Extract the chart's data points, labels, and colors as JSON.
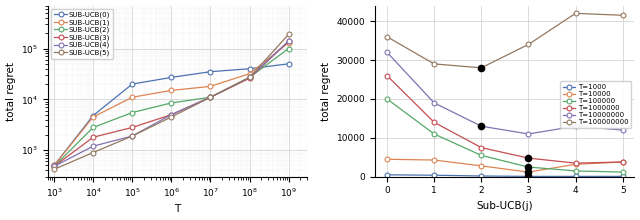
{
  "left": {
    "T_values": [
      1000,
      10000,
      100000,
      1000000,
      10000000,
      100000000,
      1000000000
    ],
    "series": [
      {
        "label": "SUB-UCB(0)",
        "color": "#4c72b0",
        "values": [
          500,
          4800,
          20000,
          27000,
          35000,
          40000,
          50000
        ]
      },
      {
        "label": "SUB-UCB(1)",
        "color": "#dd8452",
        "values": [
          500,
          4500,
          11000,
          15000,
          18000,
          32000,
          130000
        ]
      },
      {
        "label": "SUB-UCB(2)",
        "color": "#55a868",
        "values": [
          480,
          2800,
          5500,
          8500,
          11000,
          27000,
          100000
        ]
      },
      {
        "label": "SUB-UCB(3)",
        "color": "#c44e52",
        "values": [
          480,
          1800,
          2800,
          5000,
          11000,
          26000,
          140000
        ]
      },
      {
        "label": "SUB-UCB(4)",
        "color": "#8172b2",
        "values": [
          480,
          1200,
          1900,
          5000,
          11000,
          27000,
          140000
        ]
      },
      {
        "label": "SUB-UCB(5)",
        "color": "#937860",
        "values": [
          420,
          900,
          1900,
          4500,
          11000,
          27000,
          190000
        ]
      }
    ],
    "xlabel": "T",
    "ylabel": "total regret",
    "xlim": [
      700,
      3000000000
    ],
    "ylim": [
      300,
      700000
    ],
    "xticks": [
      1000,
      10000,
      100000,
      1000000,
      10000000,
      100000000,
      1000000000
    ]
  },
  "right": {
    "j_values": [
      0,
      1,
      2,
      3,
      4,
      5
    ],
    "series": [
      {
        "label": "T=1000",
        "color": "#4c72b0",
        "values": [
          500,
          400,
          200,
          100,
          100,
          100
        ]
      },
      {
        "label": "T=10000",
        "color": "#dd8452",
        "values": [
          4500,
          4300,
          2800,
          1200,
          3200,
          3800
        ]
      },
      {
        "label": "T=100000",
        "color": "#55a868",
        "values": [
          20000,
          11000,
          5500,
          2500,
          1500,
          1200
        ]
      },
      {
        "label": "T=1000000",
        "color": "#c44e52",
        "values": [
          26000,
          14000,
          7500,
          4800,
          3500,
          3800
        ]
      },
      {
        "label": "T=10000000",
        "color": "#8172b2",
        "values": [
          32000,
          19000,
          13000,
          11000,
          13000,
          12000
        ]
      },
      {
        "label": "T=100000000",
        "color": "#937860",
        "values": [
          36000,
          29000,
          28000,
          34000,
          42000,
          41500
        ]
      }
    ],
    "black_dots": [
      [
        5,
        2
      ],
      [
        4,
        2
      ],
      [
        0,
        3
      ],
      [
        1,
        3
      ],
      [
        2,
        3
      ],
      [
        3,
        3
      ]
    ],
    "xlabel": "Sub-UCB(j)",
    "ylabel": "total regret",
    "ylim": [
      0,
      44000
    ],
    "yticks": [
      0,
      10000,
      20000,
      30000,
      40000
    ],
    "ytick_labels": [
      "0",
      "10000",
      "20000",
      "30000",
      "40000"
    ]
  },
  "fig_width": 6.4,
  "fig_height": 2.2,
  "dpi": 100
}
